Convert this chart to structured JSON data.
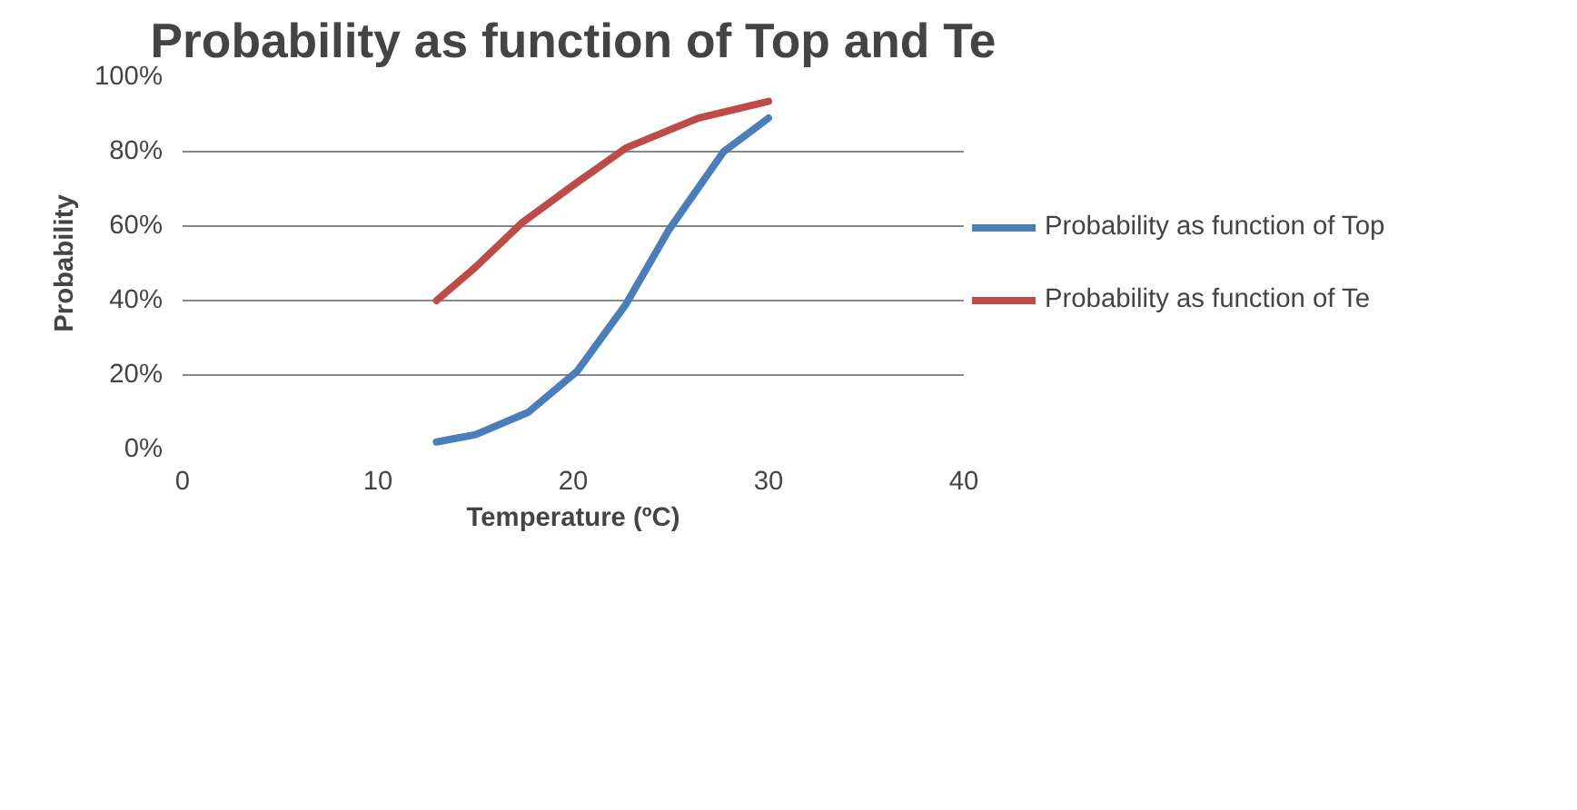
{
  "chart_data": {
    "type": "line",
    "title": "Probability as function of Top and Te",
    "xlabel": "Temperature (ºC)",
    "ylabel": "Probability",
    "xlim": [
      0,
      40
    ],
    "xticks": [
      0,
      10,
      20,
      30,
      40
    ],
    "ylim": [
      0,
      1
    ],
    "yticks": [
      {
        "value": 0,
        "label": "0%"
      },
      {
        "value": 0.2,
        "label": "20%"
      },
      {
        "value": 0.4,
        "label": "40%"
      },
      {
        "value": 0.6,
        "label": "60%"
      },
      {
        "value": 0.8,
        "label": "80%"
      },
      {
        "value": 1,
        "label": "100%"
      }
    ],
    "grid": "y",
    "legend": "right",
    "marker": "none",
    "line_style": "solid",
    "series": [
      {
        "name": "Probability as function of Top",
        "color": "#4a7ebb",
        "x": [
          13,
          15,
          17.7,
          20.2,
          22.7,
          24.9,
          27.7,
          30
        ],
        "values": [
          0.02,
          0.04,
          0.1,
          0.21,
          0.39,
          0.59,
          0.8,
          0.89
        ]
      },
      {
        "name": "Probability as function of Te",
        "color": "#be4b48",
        "x": [
          13,
          15,
          17.4,
          20,
          22.7,
          26.4,
          30
        ],
        "values": [
          0.4,
          0.49,
          0.61,
          0.71,
          0.81,
          0.89,
          0.935
        ]
      }
    ]
  }
}
